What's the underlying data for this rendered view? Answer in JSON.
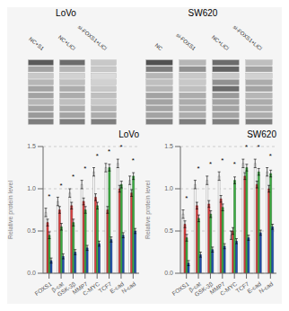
{
  "chart_data": [
    {
      "type": "heatmap",
      "title": "LoVo",
      "categories": [
        "NC+S1",
        "NC+LiCl",
        "si-FOXS1+LiCl"
      ],
      "cells": [
        [
          0.9,
          0.8,
          0.3
        ],
        [
          0.5,
          0.4,
          0.3
        ],
        [
          0.3,
          0.25,
          0.2
        ],
        [
          0.4,
          0.35,
          0.25
        ],
        [
          0.5,
          0.45,
          0.3
        ],
        [
          0.5,
          0.45,
          0.35
        ],
        [
          0.4,
          0.35,
          0.3
        ],
        [
          0.5,
          0.45,
          0.4
        ],
        [
          0.55,
          0.5,
          0.45
        ],
        [
          0.7,
          0.7,
          0.7
        ]
      ]
    },
    {
      "type": "heatmap",
      "title": "SW620",
      "categories": [
        "NC",
        "si-FOXS1",
        "NC+LiCl",
        "si-FOXS1+LiCl"
      ],
      "cells": [
        [
          0.95,
          0.4,
          0.8,
          0.35
        ],
        [
          0.7,
          0.6,
          0.85,
          0.5
        ],
        [
          0.4,
          0.3,
          0.3,
          0.25
        ],
        [
          0.35,
          0.3,
          0.6,
          0.45
        ],
        [
          0.4,
          0.35,
          0.8,
          0.5
        ],
        [
          0.5,
          0.45,
          0.55,
          0.4
        ],
        [
          0.5,
          0.45,
          0.5,
          0.45
        ],
        [
          0.5,
          0.45,
          0.5,
          0.45
        ],
        [
          0.5,
          0.45,
          0.5,
          0.45
        ],
        [
          0.7,
          0.7,
          0.7,
          0.7
        ]
      ]
    },
    {
      "type": "bar",
      "title": "LoVo",
      "ylabel": "Relative protein level",
      "categories": [
        "FOXS1",
        "β-cat",
        "GSK-3β",
        "MMP7",
        "C-MYC",
        "TCF7",
        "E-cad",
        "N-cad"
      ],
      "ylim": [
        0.0,
        1.5
      ],
      "yticks": [
        {
          "value": 0.0,
          "label": "0.0"
        },
        0.5,
        {
          "value": 1.0,
          "label": "1.0"
        },
        1.5
      ],
      "grid": true,
      "series": [
        {
          "color": "#ffffff",
          "values": [
            0.72,
            0.85,
            0.95,
            1.05,
            1.2,
            1.25,
            1.3,
            1.1
          ],
          "errors": [
            0.05,
            0.05,
            0.05,
            0.05,
            0.05,
            0.05,
            0.05,
            0.05
          ]
        },
        {
          "color": "#e04040",
          "values": [
            0.6,
            0.75,
            0.8,
            0.85,
            0.9,
            0.75,
            1.0,
            0.95
          ],
          "errors": [
            0.04,
            0.04,
            0.04,
            0.04,
            0.04,
            0.04,
            0.04,
            0.04
          ]
        },
        {
          "color": "#3cb043",
          "values": [
            0.45,
            0.55,
            0.6,
            0.75,
            0.8,
            1.25,
            1.05,
            1.15
          ],
          "errors": [
            0.04,
            0.04,
            0.04,
            0.04,
            0.04,
            0.04,
            0.04,
            0.04
          ]
        },
        {
          "color": "#2050b0",
          "values": [
            0.15,
            0.2,
            0.25,
            0.3,
            0.35,
            0.4,
            0.45,
            0.5
          ],
          "errors": [
            0.03,
            0.03,
            0.03,
            0.03,
            0.03,
            0.03,
            0.03,
            0.03
          ]
        }
      ],
      "annotations": [
        "*",
        "*",
        "*",
        "*",
        "*",
        "*",
        "*",
        "*"
      ]
    },
    {
      "type": "bar",
      "title": "SW620",
      "ylabel": "Relative protein level",
      "categories": [
        "FOXS1",
        "β-cat",
        "GSK-3β",
        "MMP7",
        "C-MYC",
        "TCF7",
        "E-cad",
        "N-cad"
      ],
      "ylim": [
        0.0,
        1.5
      ],
      "yticks": [
        {
          "value": 0.0,
          "label": "0.0"
        },
        0.5,
        {
          "value": 1.0,
          "label": "1.0"
        },
        1.5
      ],
      "grid": true,
      "series": [
        {
          "color": "#ffffff",
          "values": [
            0.7,
            1.05,
            1.1,
            1.15,
            0.45,
            1.3,
            1.3,
            1.2
          ],
          "errors": [
            0.05,
            0.05,
            0.05,
            0.05,
            0.05,
            0.05,
            0.05,
            0.05
          ]
        },
        {
          "color": "#e04040",
          "values": [
            0.58,
            0.8,
            0.82,
            0.88,
            0.5,
            1.15,
            1.05,
            1.0
          ],
          "errors": [
            0.04,
            0.04,
            0.04,
            0.04,
            0.04,
            0.04,
            0.04,
            0.04
          ]
        },
        {
          "color": "#3cb043",
          "values": [
            0.42,
            0.65,
            0.7,
            0.78,
            1.1,
            1.25,
            1.2,
            1.18
          ],
          "errors": [
            0.04,
            0.04,
            0.04,
            0.04,
            0.04,
            0.04,
            0.04,
            0.04
          ]
        },
        {
          "color": "#2050b0",
          "values": [
            0.12,
            0.22,
            0.28,
            0.32,
            0.38,
            0.42,
            0.48,
            0.55
          ],
          "errors": [
            0.03,
            0.03,
            0.03,
            0.03,
            0.03,
            0.03,
            0.03,
            0.03
          ]
        }
      ],
      "annotations": [
        "*",
        "*",
        "*",
        "*",
        "*",
        "*",
        "*",
        "*"
      ]
    }
  ]
}
